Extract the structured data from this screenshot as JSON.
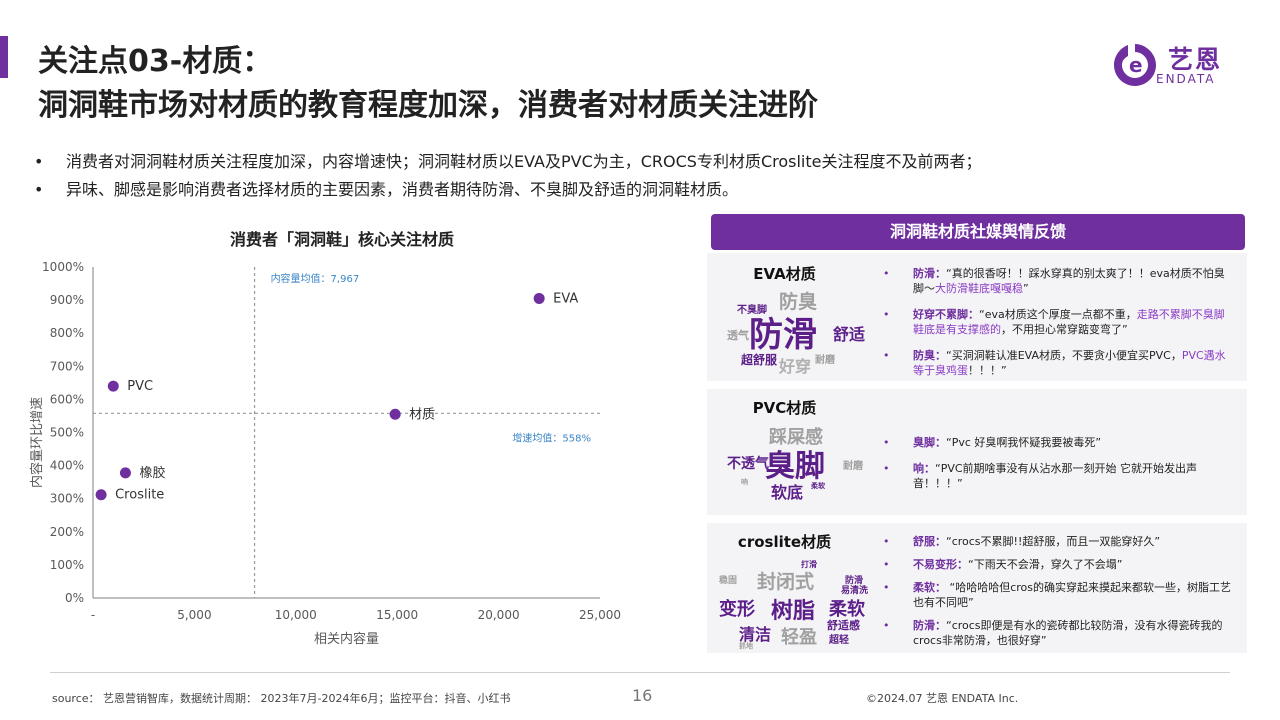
{
  "header": {
    "title_line1": "关注点03-材质：",
    "title_line2": "洞洞鞋市场对材质的教育程度加深，消费者对材质关注进阶"
  },
  "logo": {
    "text_cn": "艺恩",
    "text_en": "ENDATA",
    "mark_letter": "e",
    "color": "#6f2f9f"
  },
  "bullets": [
    {
      "marker": "•",
      "text": "消费者对洞洞鞋材质关注程度加深，内容增速快；洞洞鞋材质以EVA及PVC为主，CROCS专利材质Croslite关注程度不及前两者；"
    },
    {
      "marker": "•",
      "text": "异味、脚感是影响消费者选择材质的主要因素，消费者期待防滑、不臭脚及舒适的洞洞鞋材质。"
    }
  ],
  "chart_title": "消费者「洞洞鞋」核心关注材质",
  "chart_data": {
    "type": "scatter",
    "title": "消费者「洞洞鞋」核心关注材质",
    "xlabel": "相关内容量",
    "ylabel": "内容量环比增速",
    "xlim": [
      0,
      25000
    ],
    "ylim": [
      0,
      1000
    ],
    "x_ticks": [
      "-",
      "5,000",
      "10,000",
      "15,000",
      "20,000",
      "25,000"
    ],
    "x_tick_values": [
      0,
      5000,
      10000,
      15000,
      20000,
      25000
    ],
    "y_ticks": [
      "0%",
      "100%",
      "200%",
      "300%",
      "400%",
      "500%",
      "600%",
      "700%",
      "800%",
      "900%",
      "1000%"
    ],
    "y_tick_values": [
      0,
      100,
      200,
      300,
      400,
      500,
      600,
      700,
      800,
      900,
      1000
    ],
    "points": [
      {
        "label": "EVA",
        "x": 22000,
        "y": 905
      },
      {
        "label": "PVC",
        "x": 1000,
        "y": 640
      },
      {
        "label": "材质",
        "x": 14900,
        "y": 555
      },
      {
        "label": "橡胶",
        "x": 1600,
        "y": 378
      },
      {
        "label": "Croslite",
        "x": 400,
        "y": 312
      }
    ],
    "ref_lines": {
      "x_mean": {
        "value": 7967,
        "label": "内容量均值：7,967"
      },
      "y_mean": {
        "value": 558,
        "label": "增速均值：558%"
      }
    },
    "colors": {
      "point": "#6f2f9f",
      "ref_label": "#3a86c8",
      "ref_line": "#9a9a9a",
      "axis": "#7f7f7f",
      "tick": "#595959"
    },
    "grid": false
  },
  "panel": {
    "header": "洞洞鞋材质社媒舆情反馈",
    "cards": [
      {
        "title": "EVA材质",
        "cloud": [
          "防滑",
          "防臭",
          "不臭脚",
          "舒适",
          "透气",
          "超舒服",
          "好穿",
          "耐磨"
        ],
        "quotes": [
          {
            "key": "防滑：",
            "text": "“真的很香呀！！踩水穿真的别太爽了！！eva材质不怕臭脚～",
            "hl": "大防滑鞋底嘎嘎稳",
            "tail": "”"
          },
          {
            "key": "好穿不累脚：",
            "text": "“eva材质这个厚度一点都不重，",
            "hl": "走路不累脚不臭脚鞋底是有支撑感的",
            "tail": "，不用担心常穿踮变弯了”"
          },
          {
            "key": "防臭：",
            "text": "“买洞洞鞋认准EVA材质，不要贪小便宜买PVC，",
            "hl": "PVC遇水等于臭鸡蛋",
            "tail": "！！！”"
          }
        ]
      },
      {
        "title": "PVC材质",
        "cloud": [
          "臭脚",
          "踩屎感",
          "不透气",
          "软底",
          "耐磨",
          "柔软",
          "响"
        ],
        "quotes": [
          {
            "key": "臭脚：",
            "text": "“Pvc 好臭啊我怀疑我要被毒死”",
            "hl": "",
            "tail": ""
          },
          {
            "key": "响：",
            "text": "“PVC前期啥事没有从沾水那一刻开始 它就开始发出声音！！！”",
            "hl": "",
            "tail": ""
          }
        ]
      },
      {
        "title": "croslite材质",
        "cloud": [
          "树脂",
          "封闭式",
          "变形",
          "柔软",
          "清洁",
          "轻盈",
          "舒适感",
          "易清洗",
          "防滑",
          "打滑",
          "稳固",
          "超轻",
          "抓地"
        ],
        "quotes": [
          {
            "key": "舒服：",
            "text": "“crocs不累脚!!超舒服，而且一双能穿好久”",
            "hl": "",
            "tail": ""
          },
          {
            "key": "不易变形：",
            "text": "“下雨天不会滑，穿久了不会塌”",
            "hl": "",
            "tail": ""
          },
          {
            "key": "柔软：",
            "text": " “哈哈哈哈但cros的确实穿起来摸起来都软一些，树脂工艺也有不同吧”",
            "hl": "",
            "tail": ""
          },
          {
            "key": "防滑：",
            "text": "“crocs即便是有水的瓷砖都比较防滑，没有水得瓷砖我的crocs非常防滑，也很好穿”",
            "hl": "",
            "tail": ""
          }
        ]
      }
    ]
  },
  "footer": {
    "source": "source： 艺恩营销智库，数据统计周期： 2023年7月-2024年6月；监控平台：抖音、小红书",
    "page_number": "16",
    "copyright": "©2024.07  艺恩 ENDATA Inc."
  }
}
